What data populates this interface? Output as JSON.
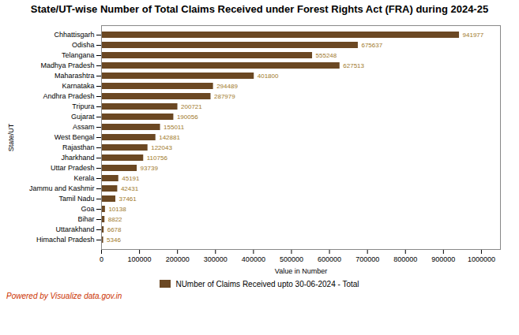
{
  "chart_data": {
    "type": "bar",
    "orientation": "horizontal",
    "title": "State/UT-wise Number of Total Claims Received under Forest Rights Act (FRA) during 2024-25",
    "xlabel": "Value in Number",
    "ylabel": "State/UT",
    "caption": "Powered by Visualize data.gov.in",
    "categories": [
      "Chhattisgarh",
      "Odisha",
      "Telangana",
      "Madhya Pradesh",
      "Maharashtra",
      "Karnataka",
      "Andhra Pradesh",
      "Tripura",
      "Gujarat",
      "Assam",
      "West Bengal",
      "Rajasthan",
      "Jharkhand",
      "Uttar Pradesh",
      "Kerala",
      "Jammu and Kashmir",
      "Tamil Nadu",
      "Goa",
      "Bihar",
      "Uttarakhand",
      "Himachal Pradesh"
    ],
    "series": [
      {
        "name": "NUmber of Claims Received upto 30-06-2024 - Total",
        "color": "#6B4823",
        "values": [
          941977,
          675637,
          555248,
          627513,
          401800,
          294489,
          287979,
          200721,
          190056,
          155011,
          142881,
          122043,
          110756,
          93739,
          45191,
          42431,
          37461,
          10138,
          8822,
          6678,
          5346
        ]
      }
    ],
    "xlim": [
      0,
      1050000
    ],
    "xticks": [
      0,
      100000,
      200000,
      300000,
      400000,
      500000,
      600000,
      700000,
      800000,
      900000,
      1000000
    ],
    "data_labels": true,
    "grid": false,
    "legend": "bottom"
  }
}
